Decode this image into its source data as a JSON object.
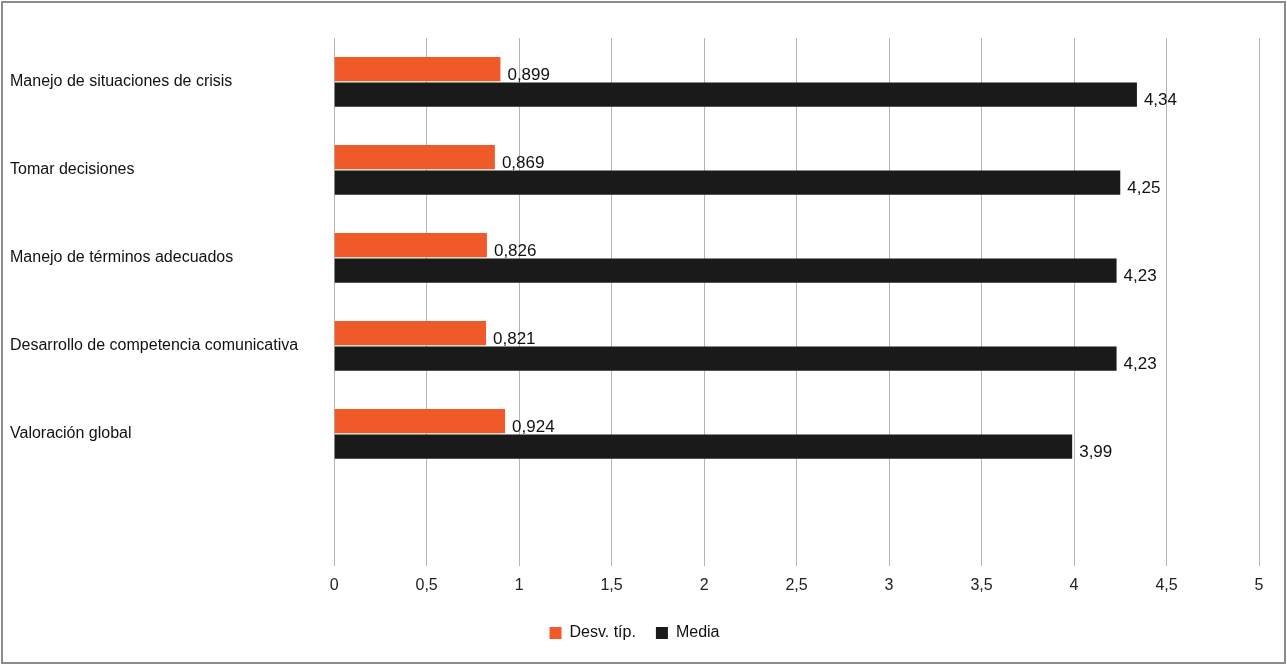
{
  "chart_data": {
    "type": "bar",
    "orientation": "horizontal",
    "categories": [
      "Manejo de situaciones de crisis",
      "Tomar decisiones",
      "Manejo de términos adecuados",
      "Desarrollo de competencia comunicativa",
      "Valoración global",
      null
    ],
    "series": [
      {
        "name": "Desv. típ.",
        "color": "#f05a28",
        "values": [
          0.899,
          0.869,
          0.826,
          0.821,
          0.924,
          null
        ],
        "value_labels": [
          "0,899",
          "0,869",
          "0,826",
          "0,821",
          "0,924",
          null
        ]
      },
      {
        "name": "Media",
        "color": "#1a1a1a",
        "values": [
          4.34,
          4.25,
          4.23,
          4.23,
          3.99,
          null
        ],
        "value_labels": [
          "4,34",
          "4,25",
          "4,23",
          "4,23",
          "3,99",
          null
        ]
      }
    ],
    "xlim": [
      0,
      5
    ],
    "xticks": [
      0,
      {
        "value": 0.5,
        "label": "0,5"
      },
      1,
      {
        "value": 1.5,
        "label": "1,5"
      },
      2,
      {
        "value": 2.5,
        "label": "2,5"
      },
      3,
      {
        "value": 3.5,
        "label": "3,5"
      },
      4,
      {
        "value": 4.5,
        "label": "4,5"
      },
      5
    ],
    "grid": "x",
    "legend": "bottom"
  }
}
